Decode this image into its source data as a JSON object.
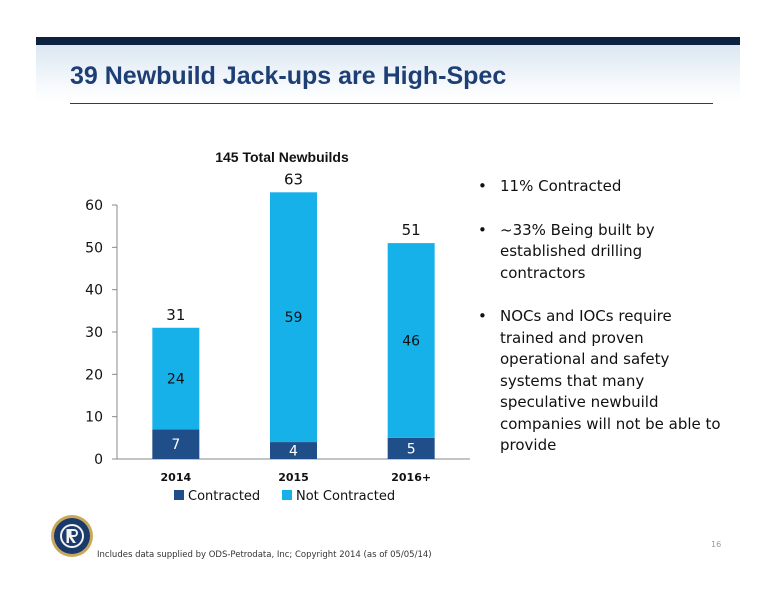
{
  "slide": {
    "title": "39 Newbuild Jack-ups are High-Spec",
    "footnote": "Includes data supplied by ODS-Petrodata, Inc; Copyright 2014 (as of 05/05/14)",
    "page_number": "16",
    "bullets": [
      "11% Contracted",
      "~33% Being built by established drilling contractors",
      "NOCs and IOCs require trained and proven operational and safety systems that many speculative newbuild companies will not be able to provide"
    ],
    "colors": {
      "title": "#1d3f75",
      "top_bar": "#0d2240"
    }
  },
  "chart_data": {
    "type": "bar",
    "stacked": true,
    "title": "145 Total Newbuilds",
    "categories": [
      "2014",
      "2015",
      "2016+"
    ],
    "series": [
      {
        "name": "Contracted",
        "values": [
          7,
          4,
          5
        ],
        "color": "#1f4e88"
      },
      {
        "name": "Not Contracted",
        "values": [
          24,
          59,
          46
        ],
        "color": "#17b1ea"
      }
    ],
    "totals": [
      31,
      63,
      51
    ],
    "ylim": [
      0,
      60
    ],
    "yticks": [
      0,
      10,
      20,
      30,
      40,
      50,
      60
    ],
    "grid": false,
    "legend": "bottom"
  }
}
